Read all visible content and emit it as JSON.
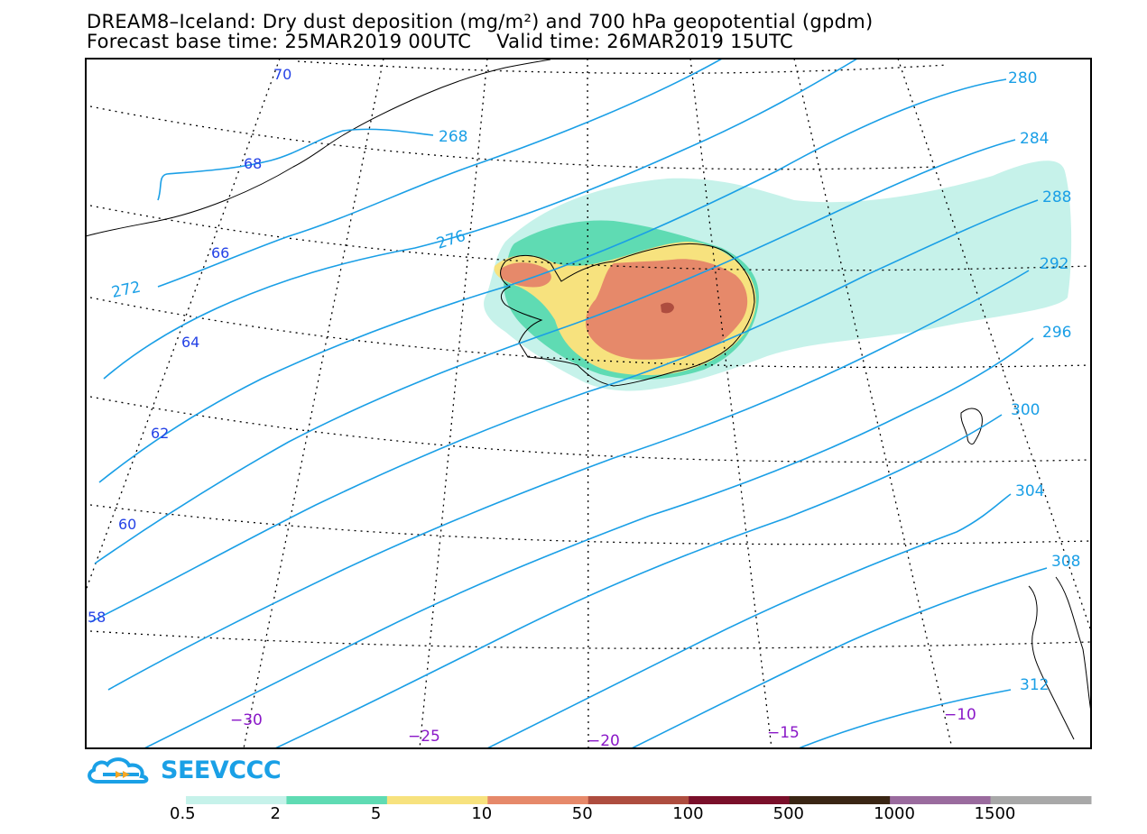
{
  "title_line1": "DREAM8–Iceland: Dry dust deposition (mg/m²) and 700 hPa geopotential (gpdm)",
  "title_line2": "Forecast base time: 25MAR2019 00UTC    Valid time: 26MAR2019 15UTC",
  "logo_text": "SEEVCCC",
  "contour_labels": [
    "268",
    "272",
    "276",
    "280",
    "284",
    "288",
    "292",
    "296",
    "300",
    "304",
    "308",
    "312"
  ],
  "latitude_labels": [
    "70",
    "68",
    "66",
    "64",
    "62",
    "60",
    "58"
  ],
  "longitude_labels": [
    "−30",
    "−25",
    "−20",
    "−15",
    "−10"
  ],
  "colorbar": {
    "bins": [
      {
        "label": "0.5",
        "color": "#c6f2ea"
      },
      {
        "label": "2",
        "color": "#5fdbb3"
      },
      {
        "label": "5",
        "color": "#f7e27e"
      },
      {
        "label": "10",
        "color": "#e6896a"
      },
      {
        "label": "50",
        "color": "#ae4d3f"
      },
      {
        "label": "100",
        "color": "#7a0f2a"
      },
      {
        "label": "500",
        "color": "#3a2614"
      },
      {
        "label": "1000",
        "color": "#9a6b9e"
      },
      {
        "label": "1500",
        "color": "#a8a8a8"
      }
    ]
  },
  "colors": {
    "contour": "#1a9fe6",
    "lat_label": "#2442e6",
    "lon_label": "#8a18c8",
    "frame": "#000000"
  }
}
